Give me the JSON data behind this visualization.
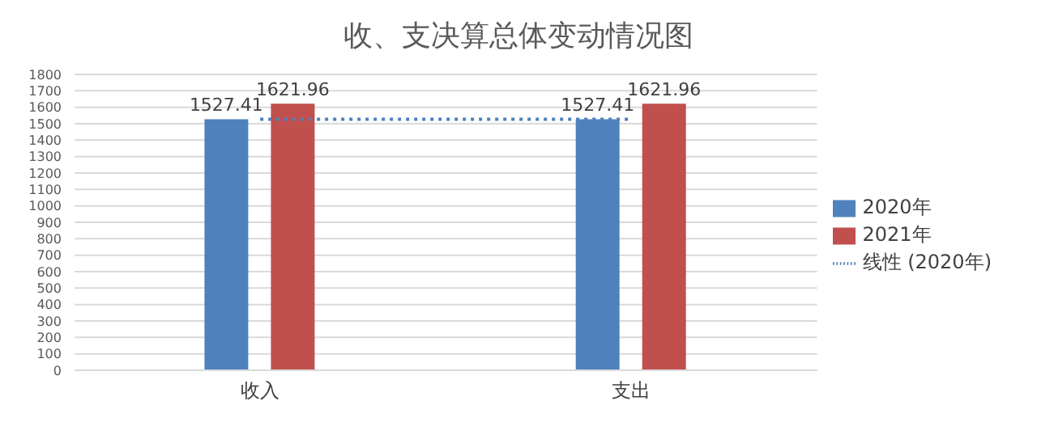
{
  "chart_data": {
    "type": "bar",
    "title": "收、支决算总体变动情况图",
    "categories": [
      "收入",
      "支出"
    ],
    "series": [
      {
        "name": "2020年",
        "color": "#4f81bd",
        "values": [
          1527.41,
          1527.41
        ],
        "value_labels": [
          "1527.41",
          "1527.41"
        ]
      },
      {
        "name": "2021年",
        "color": "#c0504d",
        "values": [
          1621.96,
          1621.96
        ],
        "value_labels": [
          "1621.96",
          "1621.96"
        ]
      },
      {
        "name": "线性 (2020年)",
        "type": "line",
        "color": "#4f81bd",
        "values": [
          1527.41,
          1527.41
        ],
        "line_style": "dotted",
        "marker": "none"
      }
    ],
    "ylim": [
      0,
      1800
    ],
    "yticks": [
      0,
      100,
      200,
      300,
      400,
      500,
      600,
      700,
      800,
      900,
      1000,
      1100,
      1200,
      1300,
      1400,
      1500,
      1600,
      1700,
      1800
    ],
    "grid": "y",
    "legend": "right"
  }
}
